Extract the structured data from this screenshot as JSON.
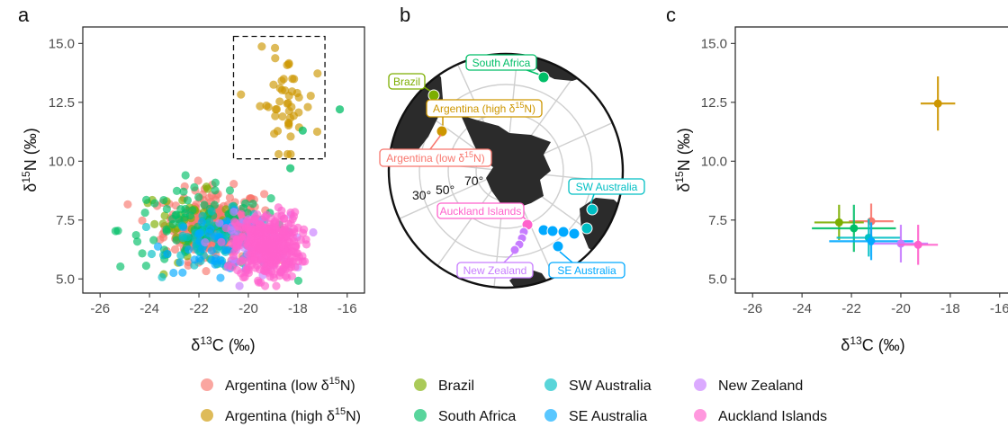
{
  "figure": {
    "panel_letters": [
      "a",
      "b",
      "c"
    ],
    "legend": [
      {
        "key": "arg_low",
        "text": "Argentina (low δ",
        "sup": "15",
        "tail": "N)",
        "color": "#F8766D"
      },
      {
        "key": "brazil",
        "text": "Brazil",
        "sup": "",
        "tail": "",
        "color": "#7CAE00"
      },
      {
        "key": "swa",
        "text": "SW Australia",
        "sup": "",
        "tail": "",
        "color": "#00BFC4"
      },
      {
        "key": "nz",
        "text": "New Zealand",
        "sup": "",
        "tail": "",
        "color": "#C77CFF"
      },
      {
        "key": "arg_high",
        "text": "Argentina (high δ",
        "sup": "15",
        "tail": "N)",
        "color": "#CD9600"
      },
      {
        "key": "sa",
        "text": "South Africa",
        "sup": "",
        "tail": "",
        "color": "#00BE67"
      },
      {
        "key": "sea",
        "text": "SE Australia",
        "sup": "",
        "tail": "",
        "color": "#00A9FF"
      },
      {
        "key": "auck",
        "text": "Auckland Islands",
        "sup": "",
        "tail": "",
        "color": "#FF61CC"
      }
    ]
  },
  "chart_data": [
    {
      "type": "scatter",
      "panel": "a",
      "xlabel_main": "δ",
      "xlabel_sup": "13",
      "xlabel_tail": "C (‰)",
      "ylabel_main": "δ",
      "ylabel_sup": "15",
      "ylabel_tail": "N (‰)",
      "xlim": [
        -26.7,
        -15.3
      ],
      "ylim": [
        4.4,
        15.7
      ],
      "xticks": [
        -26,
        -24,
        -22,
        -20,
        -18,
        -16
      ],
      "yticks": [
        5.0,
        7.5,
        10.0,
        12.5,
        15.0
      ],
      "ytick_labels": [
        "5.0",
        "7.5",
        "10.0",
        "12.5",
        "15.0"
      ],
      "highlight_box": {
        "x": [
          -20.6,
          -16.9
        ],
        "y": [
          10.1,
          15.3
        ]
      },
      "grid": false,
      "series": [
        {
          "name": "Argentina (low δ15N)",
          "key": "arg_low",
          "center": [
            -21.4,
            7.3
          ],
          "sd": [
            1.0,
            0.75
          ],
          "n": 260
        },
        {
          "name": "Brazil",
          "key": "brazil",
          "center": [
            -22.5,
            7.4
          ],
          "sd": [
            0.9,
            0.65
          ],
          "n": 35
        },
        {
          "name": "South Africa",
          "key": "sa",
          "center": [
            -21.8,
            7.1
          ],
          "sd": [
            1.7,
            0.85
          ],
          "n": 110
        },
        {
          "name": "SW Australia",
          "key": "swa",
          "center": [
            -21.0,
            6.6
          ],
          "sd": [
            1.1,
            0.6
          ],
          "n": 70
        },
        {
          "name": "SE Australia",
          "key": "sea",
          "center": [
            -21.2,
            6.5
          ],
          "sd": [
            1.1,
            0.6
          ],
          "n": 45
        },
        {
          "name": "New Zealand",
          "key": "nz",
          "center": [
            -19.9,
            6.5
          ],
          "sd": [
            0.8,
            0.6
          ],
          "n": 70
        },
        {
          "name": "Auckland Islands",
          "key": "auck",
          "center": [
            -19.2,
            6.4
          ],
          "sd": [
            0.65,
            0.7
          ],
          "n": 380
        },
        {
          "name": "Argentina (high δ15N)",
          "key": "arg_high",
          "center": [
            -18.5,
            12.4
          ],
          "sd": [
            0.6,
            1.1
          ],
          "n": 48
        }
      ],
      "extra_points": [
        {
          "key": "sa",
          "x": -16.3,
          "y": 12.2
        },
        {
          "key": "sa",
          "x": -17.8,
          "y": 11.3
        },
        {
          "key": "sa",
          "x": -18.3,
          "y": 9.7
        }
      ]
    },
    {
      "type": "map",
      "panel": "b",
      "latitude_labels": [
        "30°",
        "50°",
        "70°"
      ],
      "sites": [
        {
          "label": "South Africa",
          "key": "sa",
          "label_pos": "top"
        },
        {
          "label": "Brazil",
          "key": "brazil",
          "label_pos": "left"
        },
        {
          "label": "Argentina (high δ",
          "sup": "15",
          "tail": "N)",
          "key": "arg_high",
          "label_pos": "center"
        },
        {
          "label": "Argentina (low δ",
          "sup": "15",
          "tail": "N)",
          "key": "arg_low",
          "label_pos": "left"
        },
        {
          "label": "SW Australia",
          "key": "swa",
          "label_pos": "right"
        },
        {
          "label": "Auckland Islands",
          "key": "auck",
          "label_pos": "left"
        },
        {
          "label": "New Zealand",
          "key": "nz",
          "label_pos": "bottom"
        },
        {
          "label": "SE Australia",
          "key": "sea",
          "label_pos": "bottom"
        }
      ]
    },
    {
      "type": "errorbar",
      "panel": "c",
      "xlabel_main": "δ",
      "xlabel_sup": "13",
      "xlabel_tail": "C (‰)",
      "ylabel_main": "δ",
      "ylabel_sup": "15",
      "ylabel_tail": "N (‰)",
      "xlim": [
        -26.7,
        -15.3
      ],
      "ylim": [
        4.4,
        15.7
      ],
      "xticks": [
        -26,
        -24,
        -22,
        -20,
        -18,
        -16
      ],
      "yticks": [
        5.0,
        7.5,
        10.0,
        12.5,
        15.0
      ],
      "ytick_labels": [
        "5.0",
        "7.5",
        "10.0",
        "12.5",
        "15.0"
      ],
      "series": [
        {
          "name": "Argentina (high δ15N)",
          "key": "arg_high",
          "x": -18.5,
          "y": 12.45,
          "xsd": 0.7,
          "ysd": 1.15
        },
        {
          "name": "Argentina (low δ15N)",
          "key": "arg_low",
          "x": -21.2,
          "y": 7.45,
          "xsd": 0.9,
          "ysd": 0.75
        },
        {
          "name": "Brazil",
          "key": "brazil",
          "x": -22.5,
          "y": 7.4,
          "xsd": 1.0,
          "ysd": 0.75
        },
        {
          "name": "South Africa",
          "key": "sa",
          "x": -21.9,
          "y": 7.15,
          "xsd": 1.7,
          "ysd": 1.0
        },
        {
          "name": "SW Australia",
          "key": "swa",
          "x": -21.3,
          "y": 6.75,
          "xsd": 1.3,
          "ysd": 0.8
        },
        {
          "name": "SE Australia",
          "key": "sea",
          "x": -21.2,
          "y": 6.6,
          "xsd": 1.7,
          "ysd": 0.8
        },
        {
          "name": "New Zealand",
          "key": "nz",
          "x": -20.0,
          "y": 6.5,
          "xsd": 1.1,
          "ysd": 0.8
        },
        {
          "name": "Auckland Islands",
          "key": "auck",
          "x": -19.3,
          "y": 6.45,
          "xsd": 0.8,
          "ysd": 0.85
        }
      ]
    }
  ]
}
